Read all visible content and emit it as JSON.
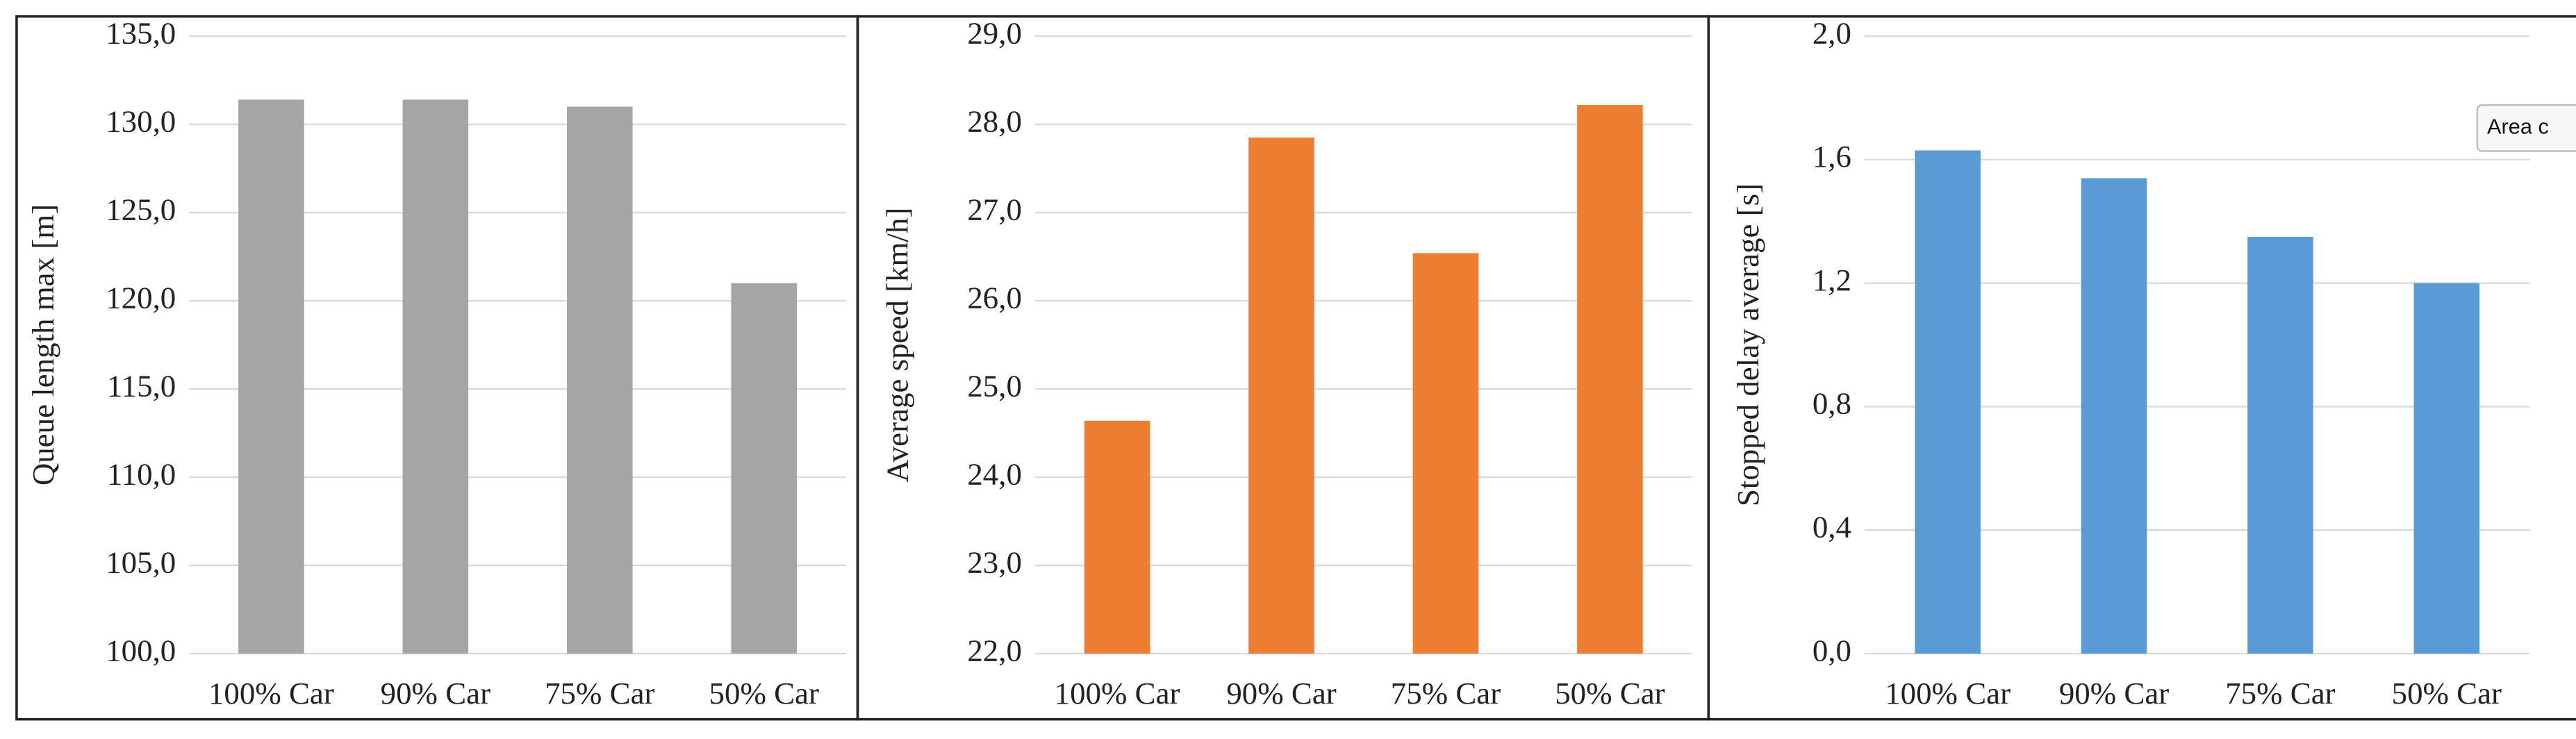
{
  "chart_data": [
    {
      "type": "bar",
      "y_label": "Queue length max [m]",
      "categories": [
        "100% Car",
        "90% Car",
        "75% Car",
        "50% Car"
      ],
      "values": [
        131.4,
        131.4,
        131.0,
        121.0
      ],
      "color": "#a5a5a5",
      "ylim": [
        100,
        135
      ],
      "yticks": [
        {
          "value": 100,
          "label": "100,0"
        },
        {
          "value": 105,
          "label": "105,0"
        },
        {
          "value": 110,
          "label": "110,0"
        },
        {
          "value": 115,
          "label": "115,0"
        },
        {
          "value": 120,
          "label": "120,0"
        },
        {
          "value": 125,
          "label": "125,0"
        },
        {
          "value": 130,
          "label": "130,0"
        },
        {
          "value": 135,
          "label": "135,0"
        }
      ],
      "grid": true
    },
    {
      "type": "bar",
      "y_label": "Average speed [km/h]",
      "categories": [
        "100% Car",
        "90% Car",
        "75% Car",
        "50% Car"
      ],
      "values": [
        24.64,
        27.85,
        26.54,
        28.22
      ],
      "color": "#ed7d31",
      "ylim": [
        22,
        29
      ],
      "yticks": [
        {
          "value": 22,
          "label": "22,0"
        },
        {
          "value": 23,
          "label": "23,0"
        },
        {
          "value": 24,
          "label": "24,0"
        },
        {
          "value": 25,
          "label": "25,0"
        },
        {
          "value": 26,
          "label": "26,0"
        },
        {
          "value": 27,
          "label": "27,0"
        },
        {
          "value": 28,
          "label": "28,0"
        },
        {
          "value": 29,
          "label": "29,0"
        }
      ],
      "grid": true
    },
    {
      "type": "bar",
      "y_label": "Stopped delay average [s]",
      "categories": [
        "100% Car",
        "90% Car",
        "75% Car",
        "50% Car"
      ],
      "values": [
        1.63,
        1.54,
        1.35,
        1.2
      ],
      "color": "#5b9bd5",
      "ylim": [
        0,
        2
      ],
      "yticks": [
        {
          "value": 0,
          "label": "0,0"
        },
        {
          "value": 0.4,
          "label": "0,4"
        },
        {
          "value": 0.8,
          "label": "0,8"
        },
        {
          "value": 1.2,
          "label": "1,2"
        },
        {
          "value": 1.6,
          "label": "1,6"
        },
        {
          "value": 2,
          "label": "2,0"
        }
      ],
      "grid": true
    }
  ],
  "tooltip": "Area c"
}
